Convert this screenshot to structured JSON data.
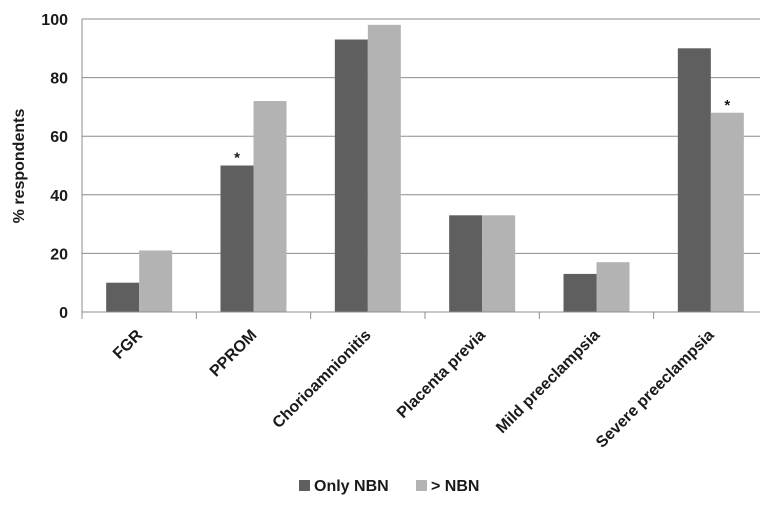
{
  "chart_data": {
    "type": "bar",
    "title": "",
    "xlabel": "",
    "ylabel": "% respondents",
    "ylim": [
      0,
      100
    ],
    "yticks": [
      "0",
      "20",
      "40",
      "60",
      "80",
      "100"
    ],
    "grid": true,
    "legend_position": "bottom",
    "categories": [
      "FGR",
      "PPROM",
      "Chorioamnionitis",
      "Placenta previa",
      "Mild preeclampsia",
      "Severe preeclampsia"
    ],
    "series": [
      {
        "name": "Only NBN",
        "color": "#5f5f5f",
        "values": [
          10,
          50,
          93,
          33,
          13,
          90
        ]
      },
      {
        "name": "> NBN",
        "color": "#b3b3b3",
        "values": [
          21,
          72,
          98,
          33,
          17,
          68
        ]
      }
    ],
    "annotations": [
      {
        "text": "*",
        "category": "PPROM",
        "series": "Only NBN"
      },
      {
        "text": "*",
        "category": "Severe preeclampsia",
        "series": "> NBN"
      }
    ]
  }
}
